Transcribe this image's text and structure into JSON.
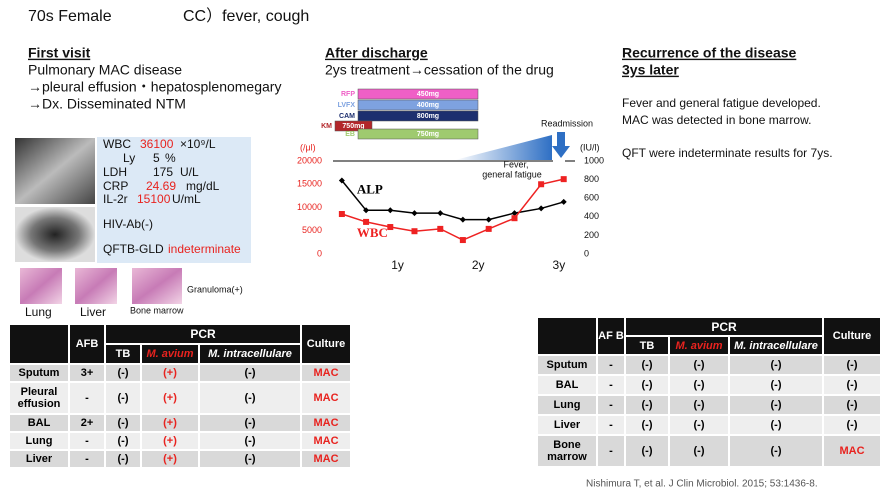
{
  "header": {
    "patient": "70s Female",
    "complaint": "CC）fever, cough"
  },
  "first_visit": {
    "title": "First visit",
    "lines": [
      "Pulmonary MAC disease",
      "→pleural effusion・hepatosplenomegary",
      "→Dx. Disseminated NTM"
    ]
  },
  "labs": [
    {
      "name": "WBC",
      "value": "36100",
      "unit": "×10⁹/L"
    },
    {
      "name": "Ly",
      "value": "5",
      "unit": "%"
    },
    {
      "name": "LDH",
      "value": "175",
      "unit": "U/L"
    },
    {
      "name": "CRP",
      "value": "24.69",
      "unit": "mg/dL"
    },
    {
      "name": "IL-2r",
      "value": "15100",
      "unit": "U/mL"
    }
  ],
  "hiv": "HIV-Ab(-)",
  "qft": {
    "name": "QFTB-GLD",
    "value": "indeterminate"
  },
  "images": {
    "lung": "Lung",
    "liver": "Liver",
    "bone_marrow": "Bone marrow",
    "granuloma": "Granuloma(+)"
  },
  "table1": {
    "header": {
      "afb": "AFB",
      "pcr": "PCR",
      "tb": "TB",
      "m_avium": "M. avium",
      "m_intra": "M. intracellulare",
      "culture": "Culture"
    },
    "rows": [
      [
        "Sputum",
        "3+",
        "(-)",
        "(+)",
        "(-)",
        "MAC"
      ],
      [
        "Pleural effusion",
        "-",
        "(-)",
        "(+)",
        "(-)",
        "MAC"
      ],
      [
        "BAL",
        "2+",
        "(-)",
        "(+)",
        "(-)",
        "MAC"
      ],
      [
        "Lung",
        "-",
        "(-)",
        "(+)",
        "(-)",
        "MAC"
      ],
      [
        "Liver",
        "-",
        "(-)",
        "(+)",
        "(-)",
        "MAC"
      ]
    ],
    "accent_color": "#e8231f",
    "accent_cells": [
      [
        0,
        3
      ],
      [
        0,
        5
      ],
      [
        1,
        3
      ],
      [
        1,
        5
      ],
      [
        2,
        3
      ],
      [
        2,
        5
      ],
      [
        3,
        3
      ],
      [
        3,
        5
      ],
      [
        4,
        3
      ],
      [
        4,
        5
      ]
    ]
  },
  "after_discharge": {
    "title": "After discharge",
    "line": "2ys treatment→cessation of the drug"
  },
  "treatment": [
    {
      "drug": "RFP",
      "dose": "450mg",
      "color": "#ef5fc6"
    },
    {
      "drug": "LVFX",
      "dose": "400mg",
      "color": "#7ea2e0"
    },
    {
      "drug": "CAM",
      "dose": "800mg",
      "color": "#1d2f6f"
    },
    {
      "drug": "KM",
      "dose": "750mg",
      "color": "#b3262a"
    },
    {
      "drug": "EB",
      "dose": "750mg",
      "color": "#9fca6f"
    }
  ],
  "chart_data": {
    "type": "line",
    "readmission": "Readmission",
    "annotation": [
      "Fever,",
      "general fatigue"
    ],
    "y_label": "(/μl)",
    "y2_label": "(IU/l)",
    "x": [
      0.31,
      0.61,
      0.91,
      1.21,
      1.53,
      1.81,
      2.13,
      2.45,
      2.78,
      3.06
    ],
    "xlim": [
      0.2,
      3.2
    ],
    "xticks": [
      {
        "value": 1,
        "label": "1y"
      },
      {
        "value": 2,
        "label": "2y"
      },
      {
        "value": 3,
        "label": "3y"
      }
    ],
    "ylim": [
      0,
      20000
    ],
    "yticks": [
      0,
      5000,
      10000,
      15000,
      20000
    ],
    "y2lim": [
      0,
      1000
    ],
    "y2ticks": [
      0,
      200,
      400,
      600,
      800,
      1000
    ],
    "grid": false,
    "series": [
      {
        "name": "ALP",
        "color": "#000000",
        "axis": "y2",
        "values": [
          790,
          470,
          470,
          440,
          440,
          370,
          370,
          440,
          490,
          560
        ]
      },
      {
        "name": "WBC",
        "color": "#ee2222",
        "values": [
          8600,
          6900,
          5800,
          4900,
          5400,
          3000,
          5400,
          7700,
          15000,
          16100
        ]
      }
    ]
  },
  "recurrence": {
    "title": [
      "Recurrence of the disease",
      "3ys later"
    ],
    "lines": [
      "Fever and general fatigue developed.",
      "MAC was detected in bone marrow.",
      "QFT were indeterminate results for 7ys."
    ]
  },
  "table2": {
    "header": {
      "afb": "AF B",
      "pcr": "PCR",
      "tb": "TB",
      "m_avium": "M. avium",
      "m_intra": "M. intracellulare",
      "culture": "Culture"
    },
    "rows": [
      [
        "Sputum",
        "-",
        "(-)",
        "(-)",
        "(-)",
        "(-)"
      ],
      [
        "BAL",
        "-",
        "(-)",
        "(-)",
        "(-)",
        "(-)"
      ],
      [
        "Lung",
        "-",
        "(-)",
        "(-)",
        "(-)",
        "(-)"
      ],
      [
        "Liver",
        "-",
        "(-)",
        "(-)",
        "(-)",
        "(-)"
      ],
      [
        "Bone marrow",
        "-",
        "(-)",
        "(-)",
        "(-)",
        "MAC"
      ]
    ],
    "accent_color": "#e8231f",
    "accent_cells": [
      [
        4,
        5
      ]
    ]
  },
  "citation": "Nishimura T, et al. J Clin Microbiol. 2015; 53:1436-8."
}
